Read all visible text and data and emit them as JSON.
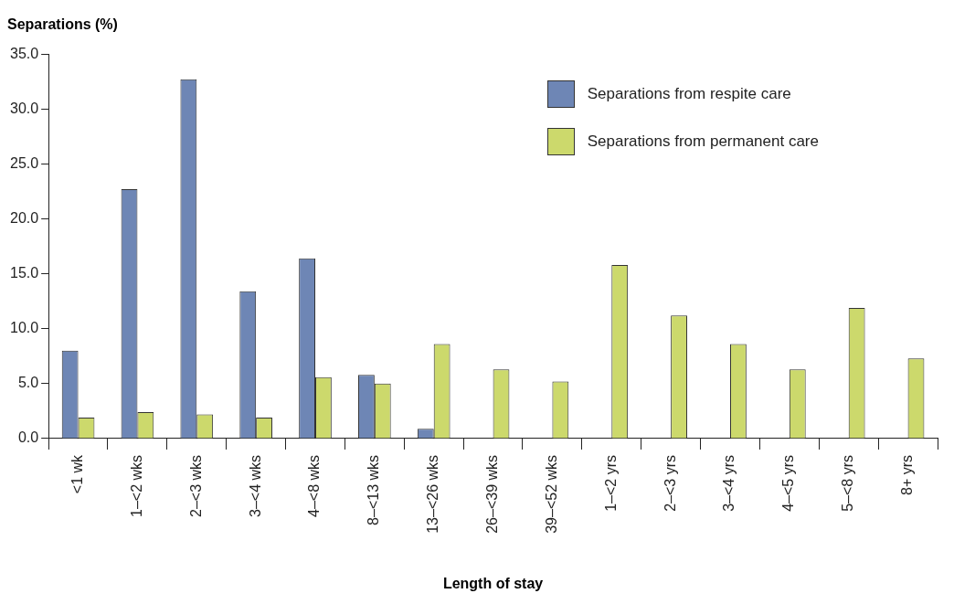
{
  "chart_data": {
    "type": "bar",
    "ylabel": "Separations (%)",
    "xlabel": "Length of stay",
    "categories": [
      "<1 wk",
      "1–<2 wks",
      "2–<3 wks",
      "3–<4 wks",
      "4–<8 wks",
      "8–<13 wks",
      "13–<26 wks",
      "26–<39 wks",
      "39–<52 wks",
      "1–<2 yrs",
      "2–<3 yrs",
      "3–<4 yrs",
      "4–<5 yrs",
      "5–<8 yrs",
      "8+ yrs"
    ],
    "series": [
      {
        "name": "Separations from respite care",
        "color": "#6e86b5",
        "values": [
          8.0,
          22.7,
          32.7,
          13.4,
          16.4,
          5.8,
          0.9,
          null,
          null,
          null,
          null,
          null,
          null,
          null,
          null
        ]
      },
      {
        "name": "Separations from permanent care",
        "color": "#ccd96c",
        "values": [
          1.9,
          2.4,
          2.2,
          1.9,
          5.6,
          5.0,
          8.6,
          6.3,
          5.2,
          15.8,
          11.2,
          8.6,
          6.3,
          11.9,
          7.3
        ]
      }
    ],
    "ylim": [
      0,
      35
    ],
    "yticks": [
      {
        "value": 0,
        "label": "0.0"
      },
      {
        "value": 5,
        "label": "5.0"
      },
      {
        "value": 10,
        "label": "10.0"
      },
      {
        "value": 15,
        "label": "15.0"
      },
      {
        "value": 20,
        "label": "20.0"
      },
      {
        "value": 25,
        "label": "25.0"
      },
      {
        "value": 30,
        "label": "30.0"
      },
      {
        "value": 35,
        "label": "35.0"
      }
    ],
    "grid": false,
    "legend": "top right"
  }
}
